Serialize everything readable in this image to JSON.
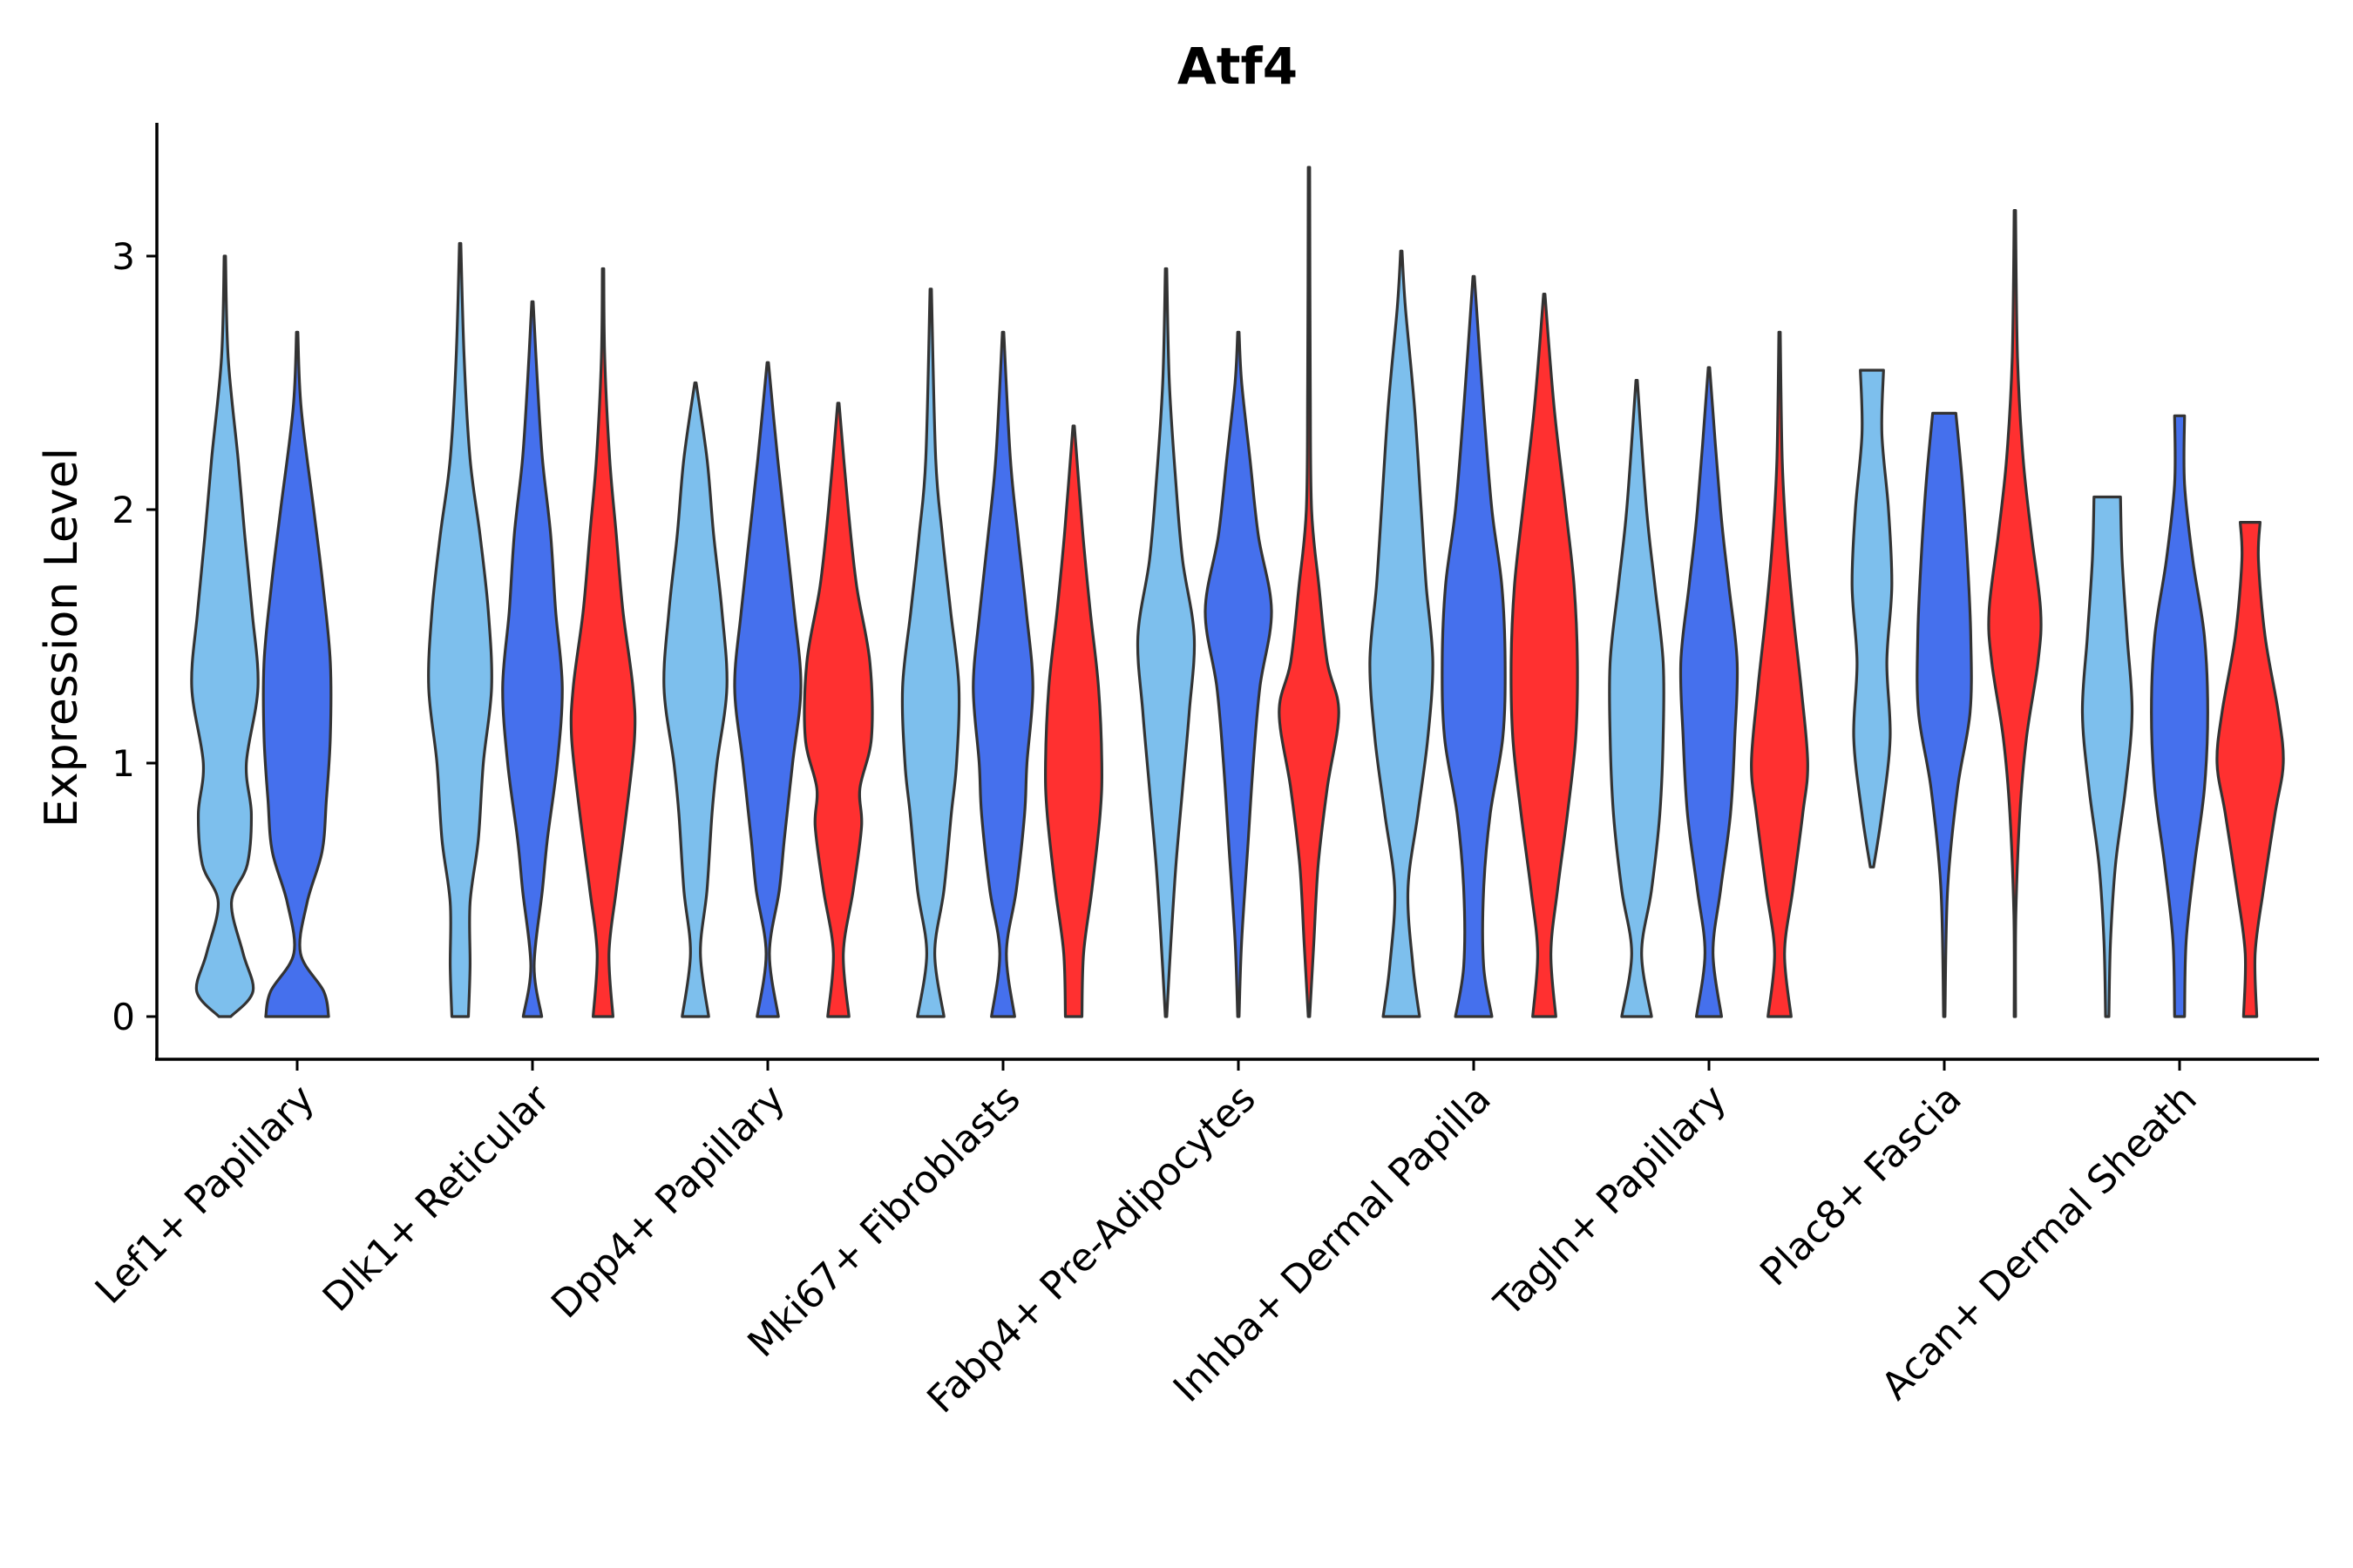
{
  "chart_data": {
    "type": "violin",
    "title": "Atf4",
    "xlabel": "",
    "ylabel": "Expression Level",
    "ylim": [
      -0.17,
      3.55
    ],
    "yticks": [
      0,
      1,
      2,
      3
    ],
    "ytick_labels": [
      "0",
      "1",
      "2",
      "3"
    ],
    "grid": false,
    "legend": "none",
    "categories": [
      "Lef1+ Papillary",
      "Dlk1+ Reticular",
      "Dpp4+ Papillary",
      "Mki67+ Fibroblasts",
      "Fabp4+ Pre-Adipocytes",
      "Inhba+ Dermal Papilla",
      "Tagln+ Papillary",
      "Plac8+ Fascia",
      "Acan+ Dermal Sheath"
    ],
    "group_colors": [
      "#7dbfed",
      "#4570ed",
      "#ff3030"
    ],
    "violins": [
      {
        "category": 0,
        "group": 0,
        "min": 0,
        "max": 3.0,
        "p": [
          [
            0,
            0.18
          ],
          [
            0.1,
            0.85
          ],
          [
            0.25,
            0.55
          ],
          [
            0.45,
            0.2
          ],
          [
            0.6,
            0.68
          ],
          [
            0.8,
            0.8
          ],
          [
            1.0,
            0.65
          ],
          [
            1.3,
            1.0
          ],
          [
            1.6,
            0.82
          ],
          [
            1.9,
            0.6
          ],
          [
            2.2,
            0.4
          ],
          [
            2.6,
            0.1
          ],
          [
            3.0,
            0.02
          ]
        ]
      },
      {
        "category": 0,
        "group": 1,
        "min": 0,
        "max": 2.7,
        "p": [
          [
            0,
            0.95
          ],
          [
            0.1,
            0.8
          ],
          [
            0.25,
            0.1
          ],
          [
            0.45,
            0.3
          ],
          [
            0.65,
            0.75
          ],
          [
            0.85,
            0.88
          ],
          [
            1.1,
            1.0
          ],
          [
            1.4,
            1.0
          ],
          [
            1.7,
            0.78
          ],
          [
            2.0,
            0.5
          ],
          [
            2.4,
            0.12
          ],
          [
            2.7,
            0.02
          ]
        ]
      },
      {
        "category": 1,
        "group": 0,
        "min": 0,
        "max": 3.05,
        "p": [
          [
            0,
            0.25
          ],
          [
            0.2,
            0.3
          ],
          [
            0.45,
            0.3
          ],
          [
            0.7,
            0.55
          ],
          [
            1.0,
            0.7
          ],
          [
            1.3,
            0.95
          ],
          [
            1.6,
            0.85
          ],
          [
            1.9,
            0.6
          ],
          [
            2.2,
            0.3
          ],
          [
            2.6,
            0.12
          ],
          [
            3.05,
            0.02
          ]
        ]
      },
      {
        "category": 1,
        "group": 1,
        "min": 0,
        "max": 2.82,
        "p": [
          [
            0,
            0.28
          ],
          [
            0.2,
            0.05
          ],
          [
            0.5,
            0.3
          ],
          [
            0.7,
            0.45
          ],
          [
            1.0,
            0.75
          ],
          [
            1.3,
            0.9
          ],
          [
            1.6,
            0.7
          ],
          [
            1.9,
            0.55
          ],
          [
            2.2,
            0.3
          ],
          [
            2.5,
            0.15
          ],
          [
            2.82,
            0.02
          ]
        ]
      },
      {
        "category": 1,
        "group": 2,
        "min": 0,
        "max": 2.95,
        "p": [
          [
            0,
            0.3
          ],
          [
            0.25,
            0.18
          ],
          [
            0.5,
            0.4
          ],
          [
            0.8,
            0.7
          ],
          [
            1.1,
            0.95
          ],
          [
            1.3,
            0.9
          ],
          [
            1.6,
            0.6
          ],
          [
            1.9,
            0.4
          ],
          [
            2.2,
            0.2
          ],
          [
            2.6,
            0.05
          ],
          [
            2.95,
            0.02
          ]
        ]
      },
      {
        "category": 2,
        "group": 0,
        "min": 0,
        "max": 2.5,
        "p": [
          [
            0,
            0.4
          ],
          [
            0.25,
            0.15
          ],
          [
            0.5,
            0.35
          ],
          [
            0.8,
            0.5
          ],
          [
            1.0,
            0.65
          ],
          [
            1.3,
            0.95
          ],
          [
            1.6,
            0.8
          ],
          [
            1.9,
            0.55
          ],
          [
            2.2,
            0.35
          ],
          [
            2.5,
            0.02
          ]
        ]
      },
      {
        "category": 2,
        "group": 1,
        "min": 0,
        "max": 2.58,
        "p": [
          [
            0,
            0.32
          ],
          [
            0.25,
            0.05
          ],
          [
            0.5,
            0.35
          ],
          [
            0.7,
            0.5
          ],
          [
            1.0,
            0.75
          ],
          [
            1.3,
            1.0
          ],
          [
            1.6,
            0.8
          ],
          [
            1.9,
            0.55
          ],
          [
            2.2,
            0.3
          ],
          [
            2.58,
            0.02
          ]
        ]
      },
      {
        "category": 2,
        "group": 2,
        "min": 0,
        "max": 2.42,
        "p": [
          [
            0,
            0.32
          ],
          [
            0.25,
            0.15
          ],
          [
            0.5,
            0.45
          ],
          [
            0.75,
            0.7
          ],
          [
            0.9,
            0.65
          ],
          [
            1.1,
            1.0
          ],
          [
            1.4,
            0.95
          ],
          [
            1.7,
            0.55
          ],
          [
            2.0,
            0.3
          ],
          [
            2.42,
            0.02
          ]
        ]
      },
      {
        "category": 3,
        "group": 0,
        "min": 0,
        "max": 2.87,
        "p": [
          [
            0,
            0.4
          ],
          [
            0.25,
            0.12
          ],
          [
            0.5,
            0.4
          ],
          [
            0.8,
            0.62
          ],
          [
            1.0,
            0.78
          ],
          [
            1.3,
            0.85
          ],
          [
            1.6,
            0.6
          ],
          [
            1.9,
            0.35
          ],
          [
            2.2,
            0.15
          ],
          [
            2.87,
            0.02
          ]
        ]
      },
      {
        "category": 3,
        "group": 1,
        "min": 0,
        "max": 2.7,
        "p": [
          [
            0,
            0.35
          ],
          [
            0.25,
            0.1
          ],
          [
            0.5,
            0.4
          ],
          [
            0.8,
            0.65
          ],
          [
            1.0,
            0.72
          ],
          [
            1.3,
            0.9
          ],
          [
            1.6,
            0.7
          ],
          [
            1.9,
            0.45
          ],
          [
            2.2,
            0.22
          ],
          [
            2.7,
            0.02
          ]
        ]
      },
      {
        "category": 3,
        "group": 2,
        "min": 0,
        "max": 2.33,
        "p": [
          [
            0,
            0.25
          ],
          [
            0.25,
            0.3
          ],
          [
            0.5,
            0.55
          ],
          [
            0.8,
            0.8
          ],
          [
            1.0,
            0.85
          ],
          [
            1.3,
            0.75
          ],
          [
            1.6,
            0.5
          ],
          [
            1.9,
            0.28
          ],
          [
            2.33,
            0.02
          ]
        ]
      },
      {
        "category": 4,
        "group": 0,
        "min": 0,
        "max": 2.95,
        "p": [
          [
            0,
            0.02
          ],
          [
            0.3,
            0.15
          ],
          [
            0.6,
            0.3
          ],
          [
            0.9,
            0.5
          ],
          [
            1.2,
            0.7
          ],
          [
            1.5,
            0.85
          ],
          [
            1.8,
            0.5
          ],
          [
            2.1,
            0.3
          ],
          [
            2.5,
            0.1
          ],
          [
            2.95,
            0.02
          ]
        ]
      },
      {
        "category": 4,
        "group": 1,
        "min": 0,
        "max": 2.7,
        "p": [
          [
            0,
            0.02
          ],
          [
            0.3,
            0.1
          ],
          [
            0.7,
            0.3
          ],
          [
            1.0,
            0.45
          ],
          [
            1.3,
            0.65
          ],
          [
            1.6,
            1.0
          ],
          [
            1.9,
            0.6
          ],
          [
            2.2,
            0.35
          ],
          [
            2.5,
            0.1
          ],
          [
            2.7,
            0.02
          ]
        ]
      },
      {
        "category": 4,
        "group": 2,
        "min": 0,
        "max": 3.35,
        "p": [
          [
            0,
            0.02
          ],
          [
            0.3,
            0.15
          ],
          [
            0.6,
            0.28
          ],
          [
            0.9,
            0.55
          ],
          [
            1.2,
            0.9
          ],
          [
            1.4,
            0.55
          ],
          [
            1.7,
            0.3
          ],
          [
            2.0,
            0.08
          ],
          [
            2.5,
            0.04
          ],
          [
            3.35,
            0.02
          ]
        ]
      },
      {
        "category": 5,
        "group": 0,
        "min": 0,
        "max": 3.02,
        "p": [
          [
            0,
            0.55
          ],
          [
            0.2,
            0.35
          ],
          [
            0.5,
            0.2
          ],
          [
            0.8,
            0.5
          ],
          [
            1.1,
            0.8
          ],
          [
            1.4,
            0.95
          ],
          [
            1.7,
            0.75
          ],
          [
            2.0,
            0.6
          ],
          [
            2.4,
            0.4
          ],
          [
            2.8,
            0.12
          ],
          [
            3.02,
            0.02
          ]
        ]
      },
      {
        "category": 5,
        "group": 1,
        "min": 0,
        "max": 2.92,
        "p": [
          [
            0,
            0.55
          ],
          [
            0.2,
            0.3
          ],
          [
            0.5,
            0.3
          ],
          [
            0.8,
            0.5
          ],
          [
            1.1,
            0.88
          ],
          [
            1.4,
            0.95
          ],
          [
            1.7,
            0.85
          ],
          [
            2.0,
            0.55
          ],
          [
            2.4,
            0.3
          ],
          [
            2.92,
            0.02
          ]
        ]
      },
      {
        "category": 5,
        "group": 2,
        "min": 0,
        "max": 2.85,
        "p": [
          [
            0,
            0.35
          ],
          [
            0.25,
            0.2
          ],
          [
            0.5,
            0.4
          ],
          [
            0.8,
            0.7
          ],
          [
            1.1,
            0.95
          ],
          [
            1.4,
            1.0
          ],
          [
            1.7,
            0.9
          ],
          [
            2.0,
            0.65
          ],
          [
            2.4,
            0.3
          ],
          [
            2.85,
            0.02
          ]
        ]
      },
      {
        "category": 6,
        "group": 0,
        "min": 0,
        "max": 2.51,
        "p": [
          [
            0,
            0.45
          ],
          [
            0.25,
            0.15
          ],
          [
            0.5,
            0.45
          ],
          [
            0.8,
            0.7
          ],
          [
            1.1,
            0.8
          ],
          [
            1.4,
            0.8
          ],
          [
            1.7,
            0.55
          ],
          [
            2.0,
            0.3
          ],
          [
            2.51,
            0.02
          ]
        ]
      },
      {
        "category": 6,
        "group": 1,
        "min": 0,
        "max": 2.56,
        "p": [
          [
            0,
            0.38
          ],
          [
            0.25,
            0.12
          ],
          [
            0.5,
            0.35
          ],
          [
            0.8,
            0.65
          ],
          [
            1.1,
            0.78
          ],
          [
            1.4,
            0.85
          ],
          [
            1.7,
            0.6
          ],
          [
            2.0,
            0.35
          ],
          [
            2.56,
            0.02
          ]
        ]
      },
      {
        "category": 6,
        "group": 2,
        "min": 0,
        "max": 2.7,
        "p": [
          [
            0,
            0.35
          ],
          [
            0.25,
            0.15
          ],
          [
            0.5,
            0.4
          ],
          [
            0.8,
            0.7
          ],
          [
            1.0,
            0.85
          ],
          [
            1.3,
            0.65
          ],
          [
            1.6,
            0.4
          ],
          [
            1.9,
            0.2
          ],
          [
            2.2,
            0.08
          ],
          [
            2.7,
            0.02
          ]
        ]
      },
      {
        "category": 7,
        "group": 0,
        "min": 0.59,
        "max": 2.55,
        "p": [
          [
            0.59,
            0.05
          ],
          [
            0.8,
            0.3
          ],
          [
            1.1,
            0.55
          ],
          [
            1.4,
            0.45
          ],
          [
            1.7,
            0.6
          ],
          [
            2.0,
            0.5
          ],
          [
            2.3,
            0.3
          ],
          [
            2.55,
            0.35
          ]
        ]
      },
      {
        "category": 7,
        "group": 1,
        "min": 0,
        "max": 2.38,
        "p": [
          [
            0,
            0.02
          ],
          [
            0.5,
            0.1
          ],
          [
            0.9,
            0.4
          ],
          [
            1.2,
            0.78
          ],
          [
            1.5,
            0.8
          ],
          [
            1.8,
            0.7
          ],
          [
            2.1,
            0.55
          ],
          [
            2.38,
            0.35
          ]
        ]
      },
      {
        "category": 7,
        "group": 2,
        "min": 0,
        "max": 3.18,
        "p": [
          [
            0,
            0.02
          ],
          [
            0.4,
            0.03
          ],
          [
            0.8,
            0.15
          ],
          [
            1.1,
            0.35
          ],
          [
            1.4,
            0.7
          ],
          [
            1.6,
            0.78
          ],
          [
            1.9,
            0.5
          ],
          [
            2.2,
            0.25
          ],
          [
            2.6,
            0.08
          ],
          [
            3.18,
            0.02
          ]
        ]
      },
      {
        "category": 8,
        "group": 0,
        "min": 0,
        "max": 2.05,
        "p": [
          [
            0,
            0.05
          ],
          [
            0.3,
            0.1
          ],
          [
            0.6,
            0.25
          ],
          [
            0.9,
            0.55
          ],
          [
            1.2,
            0.75
          ],
          [
            1.5,
            0.6
          ],
          [
            1.8,
            0.45
          ],
          [
            2.05,
            0.4
          ]
        ]
      },
      {
        "category": 8,
        "group": 1,
        "min": 0,
        "max": 2.37,
        "p": [
          [
            0,
            0.15
          ],
          [
            0.3,
            0.2
          ],
          [
            0.6,
            0.45
          ],
          [
            0.9,
            0.75
          ],
          [
            1.2,
            0.85
          ],
          [
            1.5,
            0.75
          ],
          [
            1.8,
            0.4
          ],
          [
            2.1,
            0.15
          ],
          [
            2.37,
            0.15
          ]
        ]
      },
      {
        "category": 8,
        "group": 2,
        "min": 0,
        "max": 1.95,
        "p": [
          [
            0,
            0.2
          ],
          [
            0.25,
            0.15
          ],
          [
            0.5,
            0.4
          ],
          [
            0.8,
            0.75
          ],
          [
            1.0,
            1.0
          ],
          [
            1.2,
            0.85
          ],
          [
            1.5,
            0.45
          ],
          [
            1.8,
            0.25
          ],
          [
            1.95,
            0.3
          ]
        ]
      }
    ]
  }
}
